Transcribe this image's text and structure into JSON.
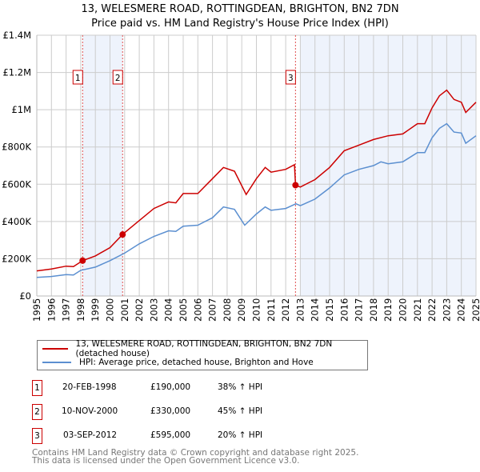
{
  "title": "13, WELESMERE ROAD, ROTTINGDEAN, BRIGHTON, BN2 7DN",
  "subtitle": "Price paid vs. HM Land Registry's House Price Index (HPI)",
  "chart_data": {
    "type": "line",
    "title": "13, WELESMERE ROAD, ROTTINGDEAN, BRIGHTON, BN2 7DN",
    "subtitle": "Price paid vs. HM Land Registry's House Price Index (HPI)",
    "xlim": [
      1995,
      2025
    ],
    "ylim": [
      0,
      1400000
    ],
    "x_ticks": [
      "1995",
      "1996",
      "1997",
      "1998",
      "1999",
      "2000",
      "2001",
      "2002",
      "2003",
      "2004",
      "2005",
      "2006",
      "2007",
      "2008",
      "2009",
      "2010",
      "2011",
      "2012",
      "2013",
      "2014",
      "2015",
      "2016",
      "2017",
      "2018",
      "2019",
      "2020",
      "2021",
      "2022",
      "2023",
      "2024",
      "2025"
    ],
    "y_ticks": [
      {
        "v": 0,
        "label": "£0"
      },
      {
        "v": 200000,
        "label": "£200K"
      },
      {
        "v": 400000,
        "label": "£400K"
      },
      {
        "v": 600000,
        "label": "£600K"
      },
      {
        "v": 800000,
        "label": "£800K"
      },
      {
        "v": 1000000,
        "label": "£1M"
      },
      {
        "v": 1200000,
        "label": "£1.2M"
      },
      {
        "v": 1400000,
        "label": "£1.4M"
      }
    ],
    "grid": true,
    "colors": {
      "property": "#cc0000",
      "hpi": "#5b8fd0",
      "shade": "#eef3fc"
    },
    "shaded_ranges": [
      [
        1998.13,
        2000.86
      ],
      [
        2013.0,
        2025
      ]
    ],
    "series": [
      {
        "name": "13, WELESMERE ROAD, ROTTINGDEAN, BRIGHTON, BN2 7DN (detached house)",
        "color": "#cc0000",
        "x": [
          1995,
          1996,
          1997,
          1997.5,
          1998.13,
          1999,
          2000,
          2000.86,
          2001,
          2002,
          2003,
          2004,
          2004.5,
          2005,
          2006,
          2007,
          2007.75,
          2008.5,
          2009.3,
          2010,
          2010.6,
          2011,
          2012,
          2012.6,
          2012.67,
          2013,
          2014,
          2015,
          2016,
          2017,
          2018,
          2019,
          2020,
          2021,
          2021.5,
          2022,
          2022.5,
          2023,
          2023.5,
          2024,
          2024.3,
          2025
        ],
        "y": [
          135000,
          145000,
          160000,
          158000,
          190000,
          215000,
          260000,
          330000,
          340000,
          405000,
          470000,
          505000,
          500000,
          550000,
          550000,
          630000,
          690000,
          670000,
          545000,
          630000,
          690000,
          665000,
          680000,
          705000,
          595000,
          585000,
          625000,
          690000,
          780000,
          810000,
          840000,
          860000,
          870000,
          925000,
          925000,
          1010000,
          1075000,
          1105000,
          1055000,
          1040000,
          985000,
          1040000
        ]
      },
      {
        "name": "HPI: Average price, detached house, Brighton and Hove",
        "color": "#5b8fd0",
        "x": [
          1995,
          1996,
          1997,
          1997.5,
          1998,
          1999,
          2000,
          2001,
          2002,
          2003,
          2004,
          2004.5,
          2005,
          2006,
          2007,
          2007.75,
          2008.5,
          2009.2,
          2010,
          2010.6,
          2011,
          2012,
          2012.7,
          2013,
          2014,
          2015,
          2016,
          2017,
          2018,
          2018.5,
          2019,
          2020,
          2021,
          2021.5,
          2022,
          2022.5,
          2023,
          2023.5,
          2024,
          2024.3,
          2025
        ],
        "y": [
          100000,
          105000,
          115000,
          113000,
          138000,
          155000,
          190000,
          230000,
          280000,
          320000,
          350000,
          347000,
          375000,
          380000,
          420000,
          478000,
          465000,
          380000,
          440000,
          478000,
          460000,
          470000,
          495000,
          485000,
          520000,
          580000,
          650000,
          680000,
          700000,
          720000,
          710000,
          720000,
          770000,
          770000,
          850000,
          900000,
          925000,
          880000,
          875000,
          820000,
          860000
        ]
      }
    ],
    "markers": [
      {
        "label": "1",
        "x": 1998.13,
        "y": 190000
      },
      {
        "label": "2",
        "x": 2000.86,
        "y": 330000
      },
      {
        "label": "3",
        "x": 2012.67,
        "y": 595000
      }
    ]
  },
  "legend": [
    {
      "label": "13, WELESMERE ROAD, ROTTINGDEAN, BRIGHTON, BN2 7DN (detached house)",
      "color": "#cc0000"
    },
    {
      "label": "HPI: Average price, detached house, Brighton and Hove",
      "color": "#5b8fd0"
    }
  ],
  "transactions": [
    {
      "num": "1",
      "date": "20-FEB-1998",
      "price": "£190,000",
      "hpi": "38% ↑ HPI"
    },
    {
      "num": "2",
      "date": "10-NOV-2000",
      "price": "£330,000",
      "hpi": "45% ↑ HPI"
    },
    {
      "num": "3",
      "date": "03-SEP-2012",
      "price": "£595,000",
      "hpi": "20% ↑ HPI"
    }
  ],
  "footer": [
    "Contains HM Land Registry data © Crown copyright and database right 2025.",
    "This data is licensed under the Open Government Licence v3.0."
  ]
}
